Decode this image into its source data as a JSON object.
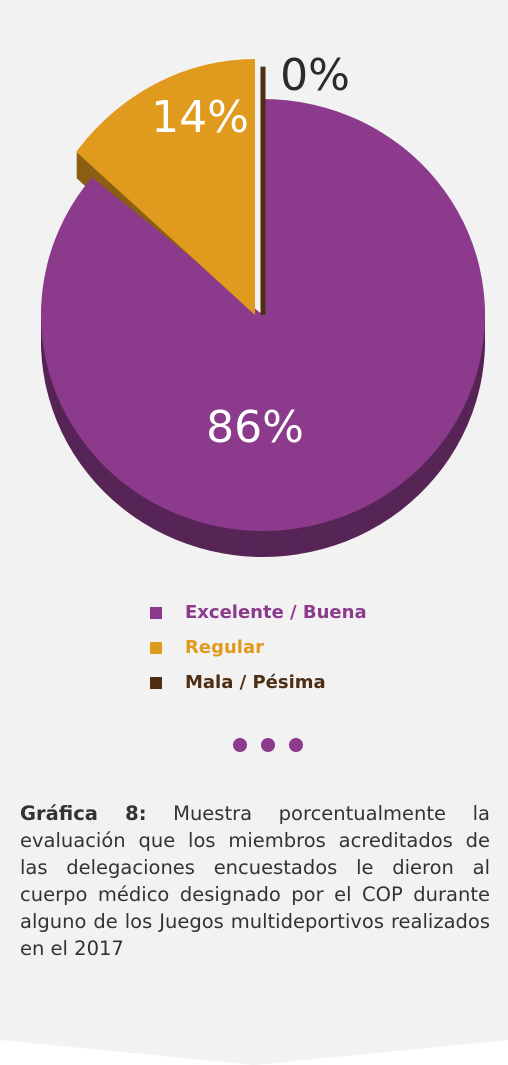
{
  "chart_data": {
    "type": "pie",
    "series": [
      {
        "name": "Excelente / Buena",
        "color": "#8c3a8b",
        "values": [
          86
        ],
        "value_labels": [
          "86%"
        ]
      },
      {
        "name": "Regular",
        "color": "#e09a1e",
        "values": [
          14
        ],
        "value_labels": [
          "14%"
        ]
      },
      {
        "name": "Mala / Pésima",
        "color": "#4d2e12",
        "values": [
          0
        ],
        "value_labels": [
          "0%"
        ]
      }
    ],
    "caption": {
      "lead": "Gráfica 8:",
      "text": "Muestra porcentualmente la evaluación que los miembros acreditados de las delegaciones encuestados le dieron al cuerpo médico designado por el COP durante alguno de los Juegos multideportivos realizados en el 2017"
    }
  }
}
